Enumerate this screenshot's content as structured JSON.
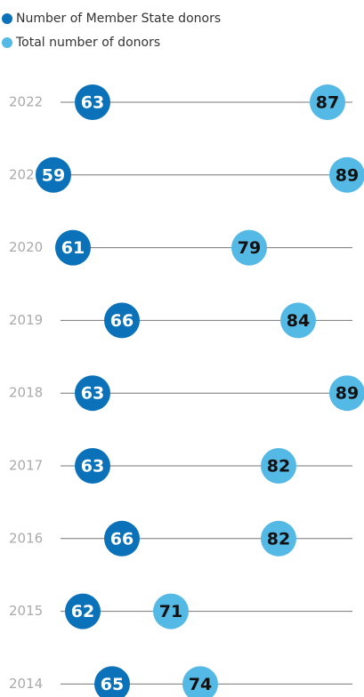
{
  "chart_data": {
    "type": "dotplot",
    "categories": [
      "2022",
      "2021",
      "2020",
      "2019",
      "2018",
      "2017",
      "2016",
      "2015",
      "2014"
    ],
    "series": [
      {
        "name": "Number of Member State donors",
        "color": "#0b72b9",
        "values": [
          63,
          59,
          61,
          66,
          63,
          63,
          66,
          62,
          65
        ]
      },
      {
        "name": "Total number of donors",
        "color": "#55b9e6",
        "values": [
          87,
          89,
          79,
          84,
          89,
          82,
          82,
          71,
          74
        ]
      }
    ],
    "xlim": [
      55,
      92
    ]
  }
}
